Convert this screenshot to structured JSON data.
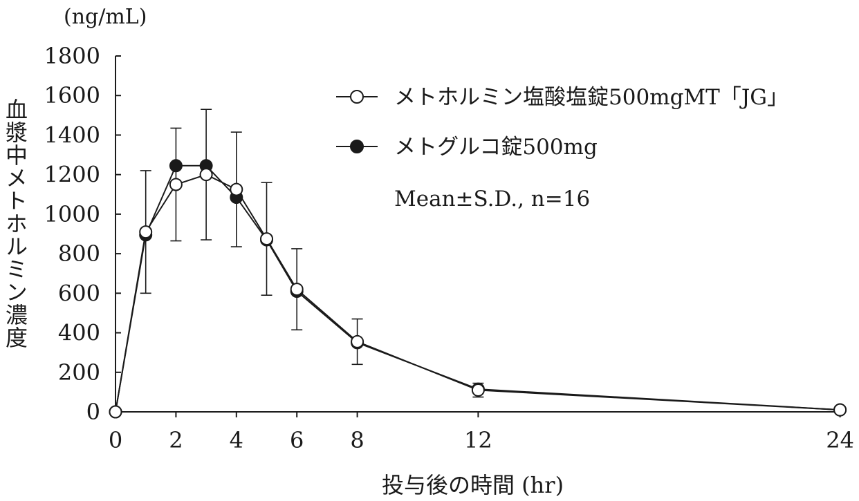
{
  "chart_data": {
    "type": "line",
    "unit_label": "(ng/mL)",
    "ylabel": "血漿中メトホルミン濃度",
    "xlabel": "投与後の時間 (hr)",
    "ylim": [
      0,
      1800
    ],
    "yticks": [
      0,
      200,
      400,
      600,
      800,
      1000,
      1200,
      1400,
      1600,
      1800
    ],
    "ytick_labels": [
      "0",
      "200",
      "400",
      "600",
      "800",
      "1000",
      "1200",
      "1400",
      "1600",
      "1800"
    ],
    "x_scale": "piecewise-linear (0–8 hr, 8–12 hr, 12–24 hr compressed)",
    "xticks": [
      0,
      2,
      4,
      6,
      8,
      12,
      24
    ],
    "xtick_labels": [
      "0",
      "2",
      "4",
      "6",
      "8",
      "12",
      "24"
    ],
    "x": [
      0,
      1,
      2,
      3,
      4,
      5,
      6,
      8,
      12,
      24
    ],
    "series": [
      {
        "name": "メトホルミン塩酸塩錠500mgMT「JG」",
        "marker": "open-circle",
        "values": [
          0,
          910,
          1150,
          1200,
          1125,
          875,
          620,
          355,
          110,
          10
        ],
        "sd": [
          0,
          310,
          285,
          330,
          290,
          285,
          205,
          115,
          35,
          0
        ]
      },
      {
        "name": "メトグルコ錠500mg",
        "marker": "filled-circle",
        "values": [
          0,
          895,
          1245,
          1245,
          1085,
          870,
          610,
          350,
          115,
          10
        ],
        "sd": [
          0,
          0,
          0,
          0,
          0,
          0,
          0,
          0,
          0,
          0
        ]
      }
    ],
    "annotation": "Mean±S.D., n=16",
    "legend_position": "top-right",
    "grid": false
  },
  "colors": {
    "line": "#1a1a1a",
    "background": "#ffffff"
  }
}
